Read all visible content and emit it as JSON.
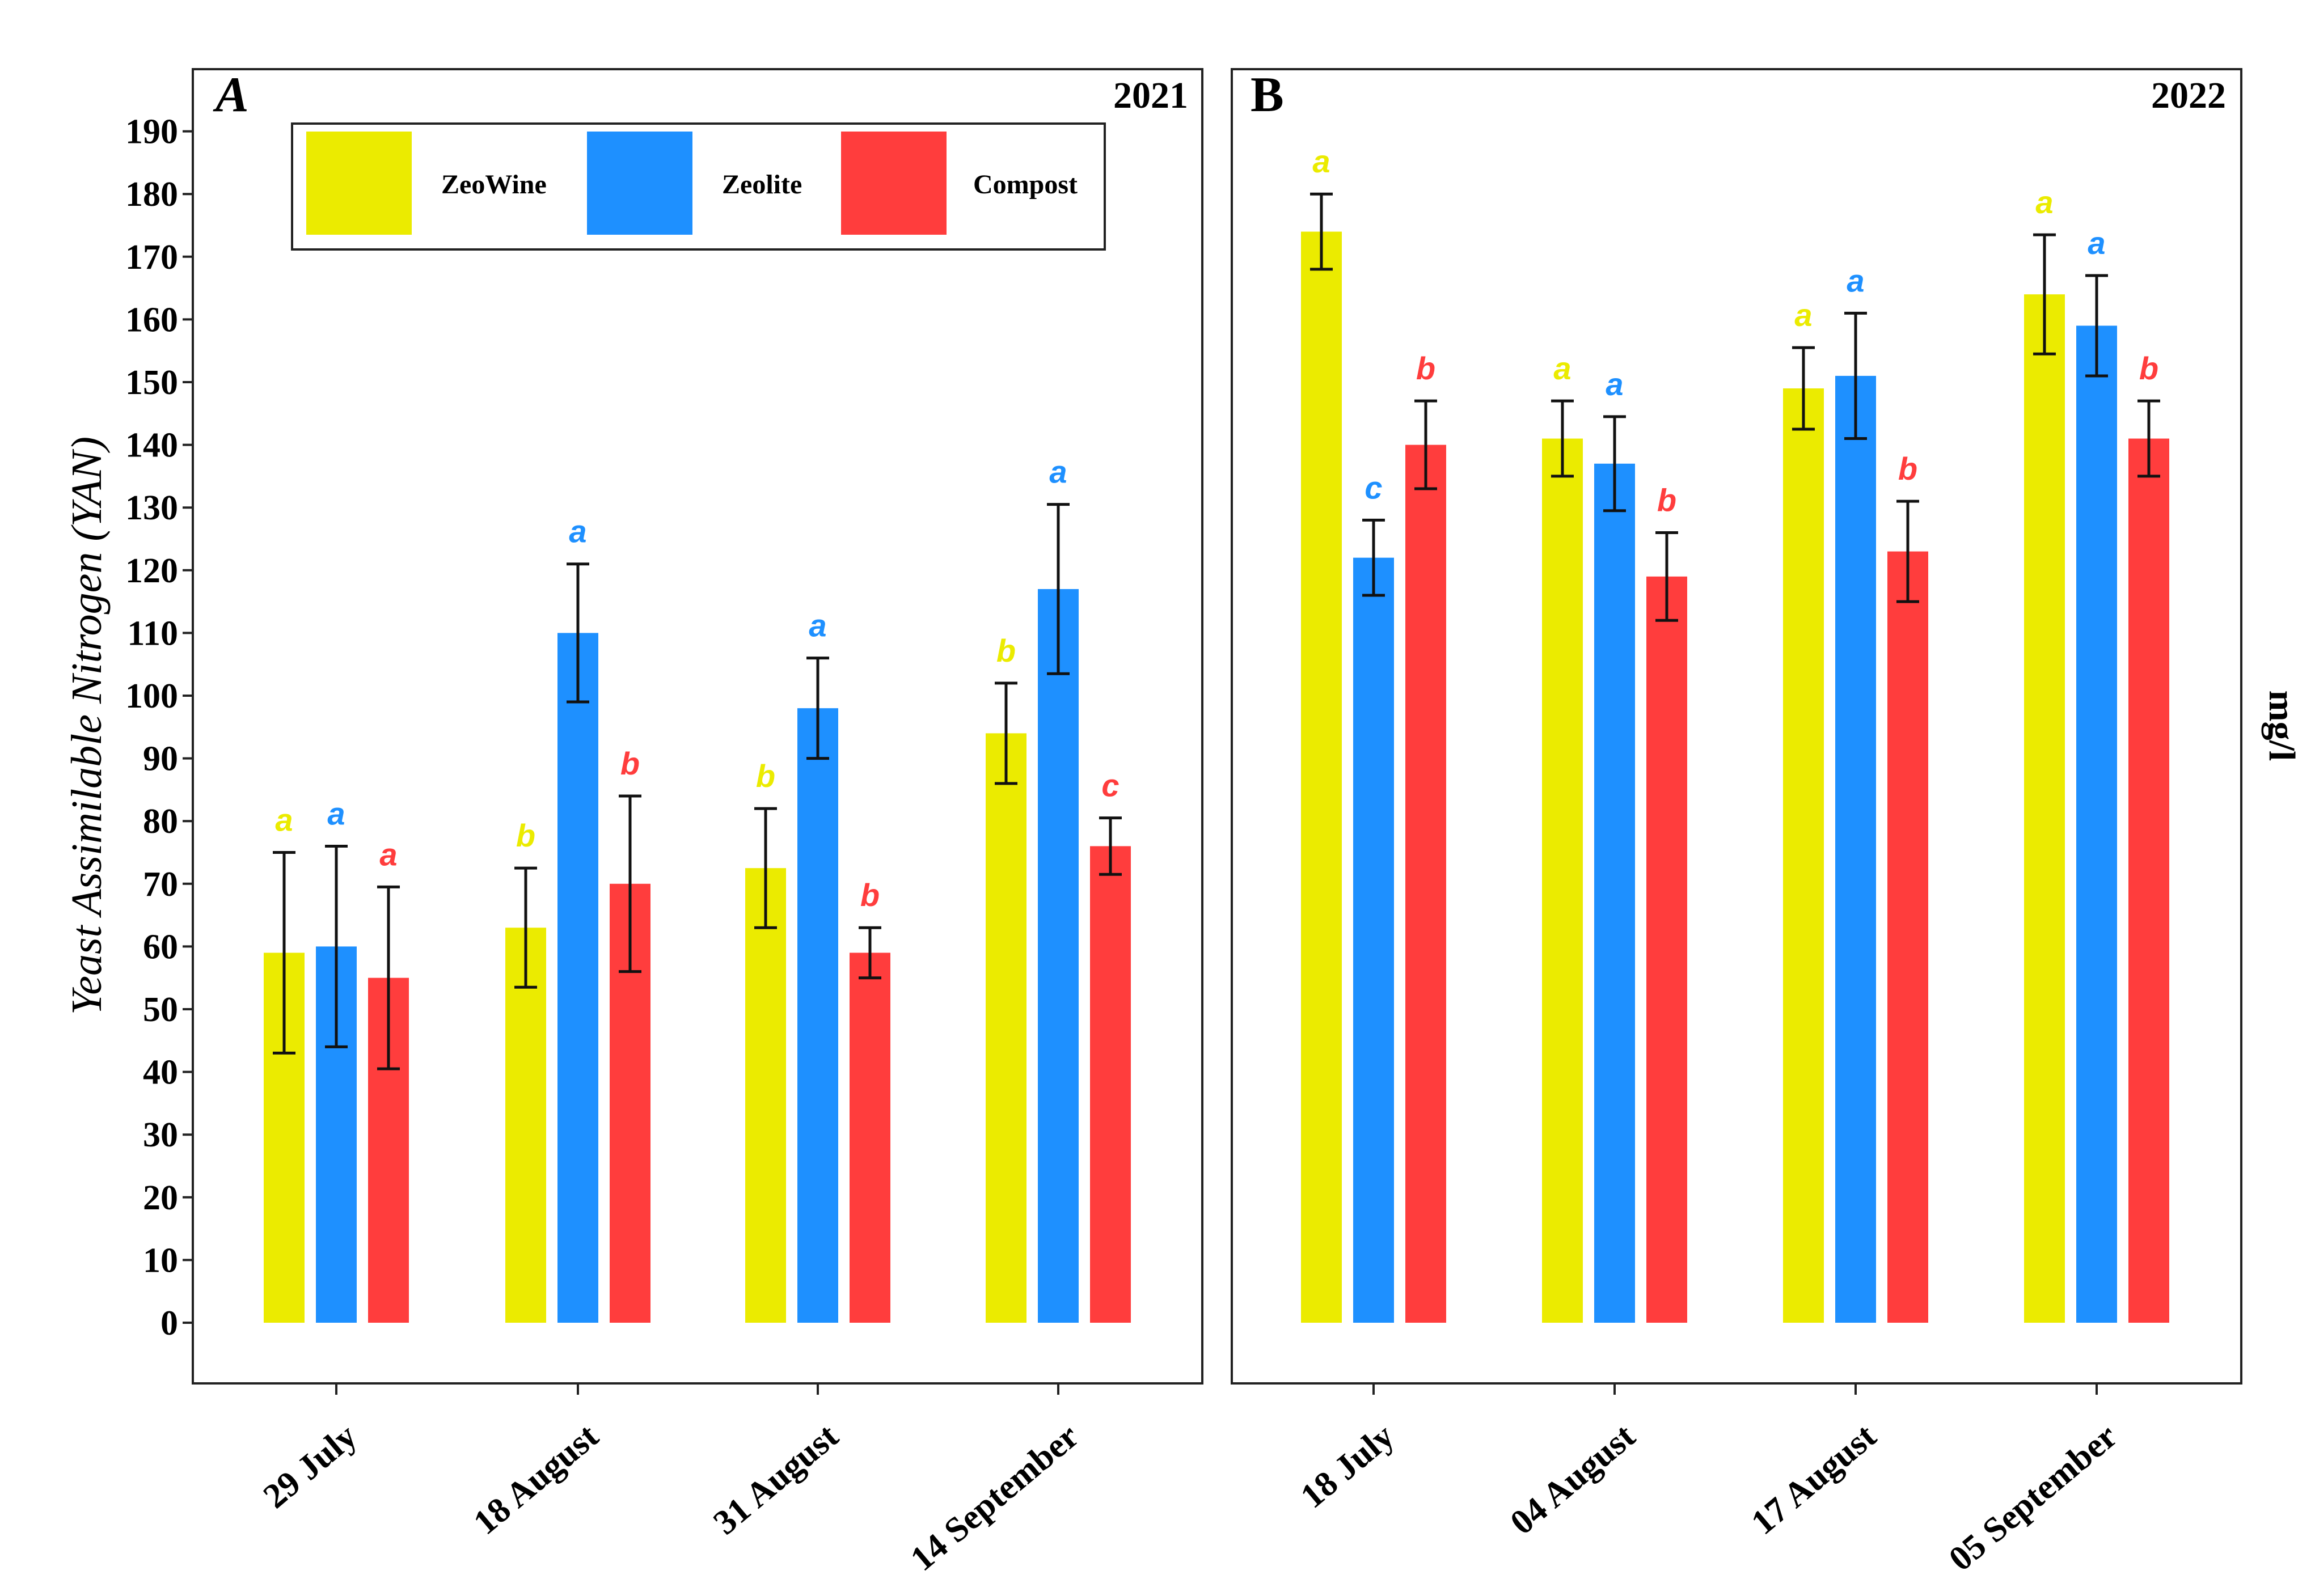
{
  "chart_data": {
    "type": "bar",
    "ylabel": "Yeast Assimilable Nitrogen (YAN)",
    "unit": "mg/l",
    "ylim": [
      0,
      190
    ],
    "yticks": [
      0,
      10,
      20,
      30,
      40,
      50,
      60,
      70,
      80,
      90,
      100,
      110,
      120,
      130,
      140,
      150,
      160,
      170,
      180,
      190
    ],
    "legend": {
      "position": "top",
      "entries": [
        {
          "name": "ZeoWine",
          "color": "#EBEB00"
        },
        {
          "name": "Zeolite",
          "color": "#1E90FF"
        },
        {
          "name": "Compost",
          "color": "#FF3D3D"
        }
      ]
    },
    "panels": [
      {
        "label": "A",
        "year": "2021",
        "categories": [
          "29 July",
          "18 August",
          "31 August",
          "14 September"
        ],
        "series": [
          {
            "name": "ZeoWine",
            "values": [
              59,
              63,
              72.5,
              94
            ],
            "errors": [
              16,
              9.5,
              9.5,
              8
            ],
            "letters": [
              "a",
              "b",
              "b",
              "b"
            ]
          },
          {
            "name": "Zeolite",
            "values": [
              60,
              110,
              98,
              117
            ],
            "errors": [
              16,
              11,
              8,
              13.5
            ],
            "letters": [
              "a",
              "a",
              "a",
              "a"
            ]
          },
          {
            "name": "Compost",
            "values": [
              55,
              70,
              59,
              76
            ],
            "errors": [
              14.5,
              14,
              4,
              4.5
            ],
            "letters": [
              "a",
              "b",
              "b",
              "c"
            ]
          }
        ]
      },
      {
        "label": "B",
        "year": "2022",
        "categories": [
          "18 July",
          "04 August",
          "17 August",
          "05 September"
        ],
        "series": [
          {
            "name": "ZeoWine",
            "values": [
              174,
              141,
              149,
              164
            ],
            "errors": [
              6,
              6,
              6.5,
              9.5
            ],
            "letters": [
              "a",
              "a",
              "a",
              "a"
            ]
          },
          {
            "name": "Zeolite",
            "values": [
              122,
              137,
              151,
              159
            ],
            "errors": [
              6,
              7.5,
              10,
              8
            ],
            "letters": [
              "c",
              "a",
              "a",
              "a"
            ]
          },
          {
            "name": "Compost",
            "values": [
              140,
              119,
              123,
              141
            ],
            "errors": [
              7,
              7,
              8,
              6
            ],
            "letters": [
              "b",
              "b",
              "b",
              "b"
            ]
          }
        ]
      }
    ]
  }
}
